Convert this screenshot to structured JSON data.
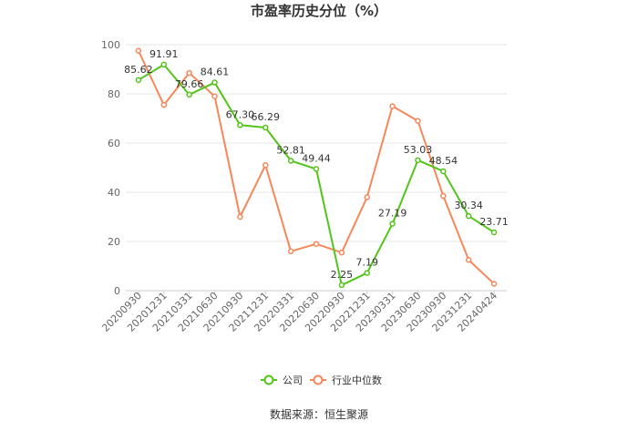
{
  "chart_data": {
    "type": "line",
    "title": "市盈率历史分位（%）",
    "source": "数据来源：恒生聚源",
    "ylim": [
      0,
      100
    ],
    "yticks": [
      "0",
      "20",
      "40",
      "60",
      "80",
      "100"
    ],
    "categories": [
      "20200930",
      "20201231",
      "20210331",
      "20210630",
      "20210930",
      "20211231",
      "20220331",
      "20220630",
      "20220930",
      "20221231",
      "20230331",
      "20230630",
      "20230930",
      "20231231",
      "20240424"
    ],
    "series": [
      {
        "name": "公司",
        "color": "#52c41a",
        "values": [
          85.62,
          91.91,
          79.66,
          84.61,
          67.3,
          66.29,
          52.81,
          49.44,
          2.25,
          7.19,
          27.19,
          53.03,
          48.54,
          30.34,
          23.71
        ],
        "labels": [
          "85.62",
          "91.91",
          "79.66",
          "84.61",
          "67.30",
          "66.29",
          "52.81",
          "49.44",
          "2.25",
          "7.19",
          "27.19",
          "53.03",
          "48.54",
          "30.34",
          "23.71"
        ]
      },
      {
        "name": "行业中位数",
        "color": "#f5875a",
        "values": [
          97.5,
          75.5,
          88.5,
          79.0,
          30.0,
          51.0,
          16.0,
          19.0,
          15.5,
          38.0,
          75.0,
          69.0,
          38.5,
          12.5,
          2.8
        ]
      }
    ],
    "grid": true,
    "legend": "bottom-center"
  }
}
